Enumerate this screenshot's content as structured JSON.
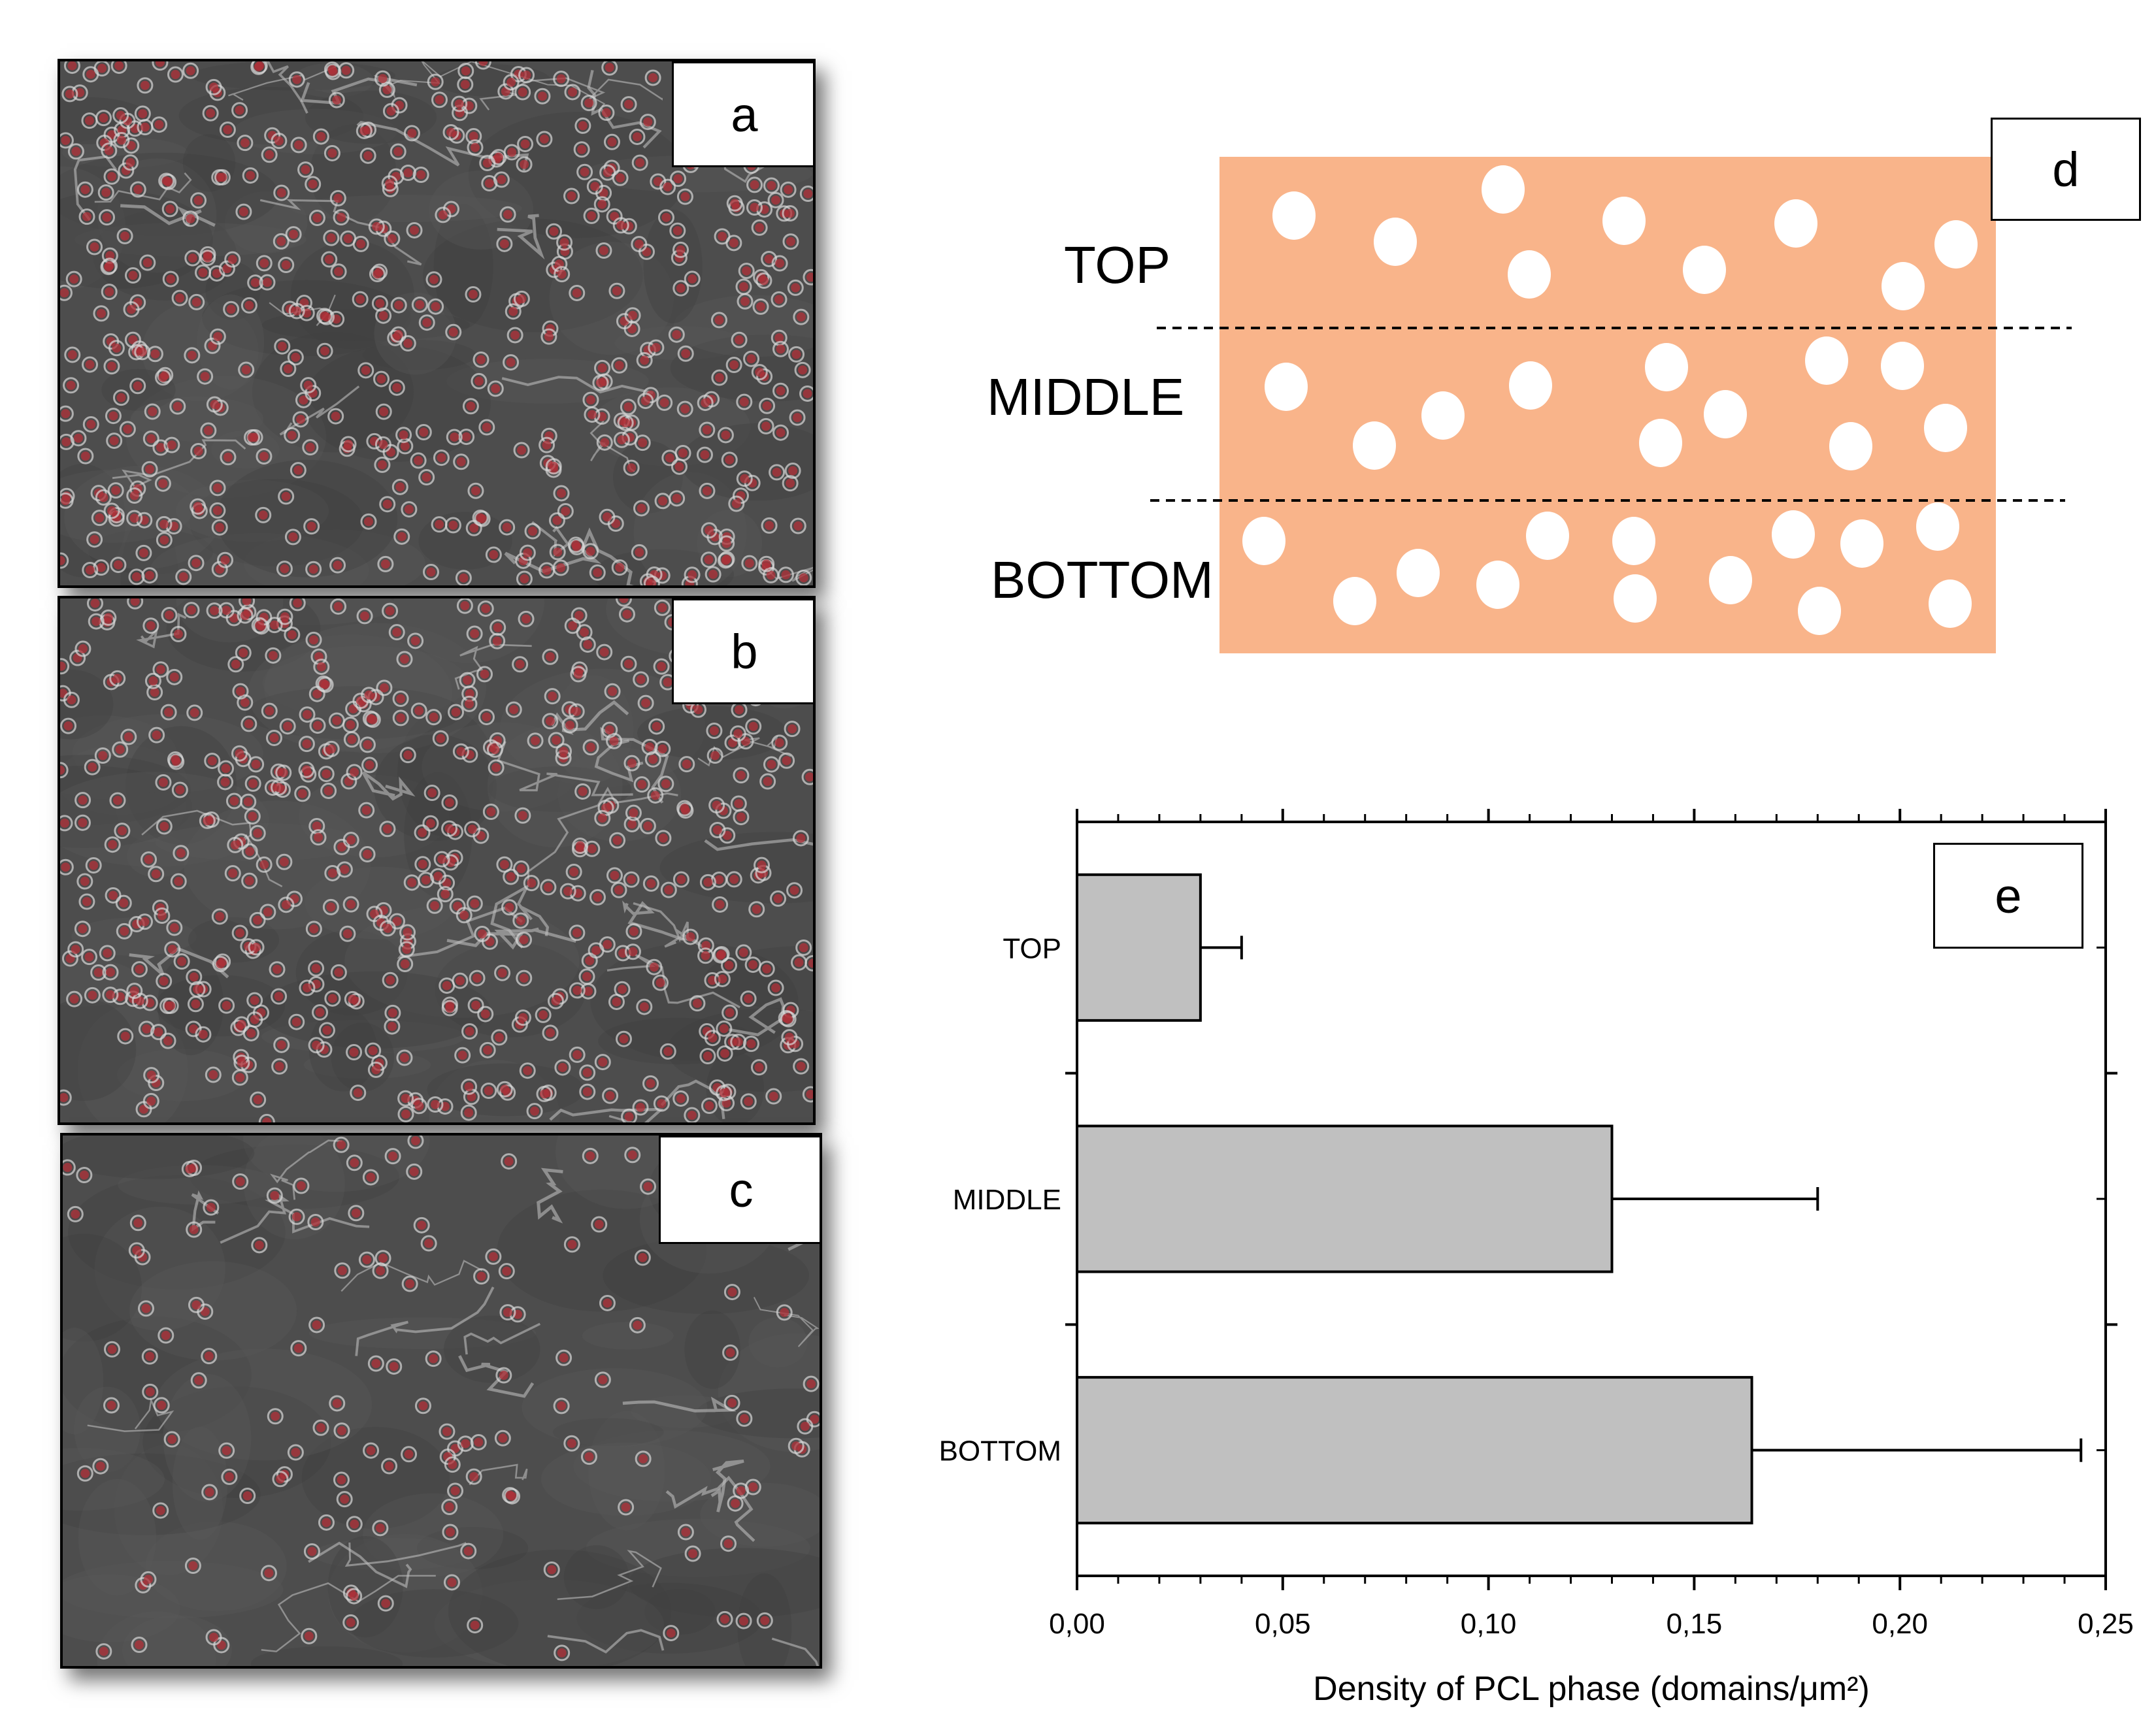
{
  "panels": {
    "a": {
      "label": "a",
      "kind": "SEM micrograph",
      "domain_density": "high",
      "dot_color": "#b03038"
    },
    "b": {
      "label": "b",
      "kind": "SEM micrograph",
      "domain_density": "high",
      "dot_color": "#b03038"
    },
    "c": {
      "label": "c",
      "kind": "SEM micrograph",
      "domain_density": "low",
      "dot_color": "#b03038"
    }
  },
  "schematic": {
    "label": "d",
    "layers": [
      "TOP",
      "MIDDLE",
      "BOTTOM"
    ],
    "fill_color": "#f9b48a",
    "domain_color": "#ffffff",
    "divider_style": "dashed"
  },
  "chart_data": {
    "type": "bar",
    "orientation": "horizontal",
    "panel_label": "e",
    "categories": [
      "TOP",
      "MIDDLE",
      "BOTTOM"
    ],
    "values": [
      0.03,
      0.13,
      0.164
    ],
    "errors": [
      0.01,
      0.05,
      0.08
    ],
    "xlabel": "Density of PCL phase (domains/μm²)",
    "ylabel": "",
    "xlim": [
      0,
      0.25
    ],
    "xticks": [
      "0,00",
      "0,05",
      "0,10",
      "0,15",
      "0,20",
      "0,25"
    ],
    "bar_color": "#c0c0c0",
    "grid": false
  }
}
